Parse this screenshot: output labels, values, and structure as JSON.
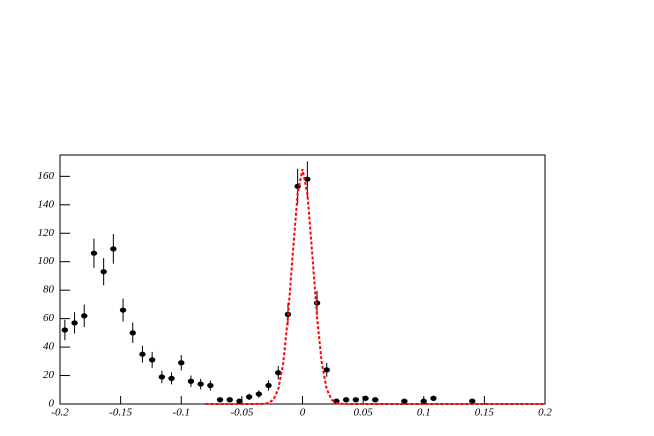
{
  "chart_data": {
    "type": "scatter",
    "xlim": [
      -0.2,
      0.2
    ],
    "ylim": [
      0,
      175
    ],
    "xticks": [
      -0.2,
      -0.15,
      -0.1,
      -0.05,
      0,
      0.05,
      0.1,
      0.15,
      0.2
    ],
    "yticks": [
      0,
      20,
      40,
      60,
      80,
      100,
      120,
      140,
      160
    ],
    "series": [
      {
        "type": "scatter",
        "color": "#000000",
        "x": [
          -0.196,
          -0.188,
          -0.18,
          -0.172,
          -0.164,
          -0.156,
          -0.148,
          -0.14,
          -0.132,
          -0.124,
          -0.116,
          -0.108,
          -0.1,
          -0.092,
          -0.084,
          -0.076,
          -0.068,
          -0.06,
          -0.052,
          -0.044,
          -0.036,
          -0.028,
          -0.02,
          -0.012,
          -0.004,
          0.004,
          0.012,
          0.02,
          0.028,
          0.036,
          0.044,
          0.052,
          0.06,
          0.084,
          0.1,
          0.108,
          0.14
        ],
        "values": [
          52,
          57,
          62,
          106,
          93,
          109,
          66,
          50,
          35,
          31,
          19,
          18,
          29,
          16,
          14,
          13,
          3,
          3,
          2,
          5,
          7,
          13,
          22,
          63,
          153,
          158,
          71,
          24,
          2,
          3,
          3,
          4,
          3,
          2,
          2,
          4,
          2
        ],
        "errors": [
          7.2,
          7.5,
          7.9,
          10.3,
          9.6,
          10.4,
          8.1,
          7.1,
          5.9,
          5.6,
          4.4,
          4.2,
          5.4,
          4,
          3.7,
          3.6,
          1.7,
          1.7,
          1.4,
          2.2,
          2.6,
          3.6,
          4.7,
          7.9,
          12.4,
          12.6,
          8.4,
          4.9,
          1.4,
          1.7,
          1.7,
          2,
          1.7,
          1.4,
          1.4,
          2,
          1.4
        ]
      },
      {
        "type": "line",
        "color": "#ff0000",
        "dashed": true,
        "x": [
          -0.08,
          -0.04,
          -0.032,
          -0.028,
          -0.024,
          -0.02,
          -0.016,
          -0.012,
          -0.008,
          -0.004,
          0,
          0.004,
          0.008,
          0.012,
          0.016,
          0.02,
          0.024,
          0.028,
          0.032,
          0.04,
          0.2
        ],
        "values": [
          0,
          0,
          0.1,
          0.7,
          3.1,
          10.4,
          28,
          61,
          106,
          148,
          165,
          148,
          106,
          61,
          28,
          10.4,
          3.1,
          0.7,
          0.1,
          0,
          0
        ]
      }
    ]
  }
}
